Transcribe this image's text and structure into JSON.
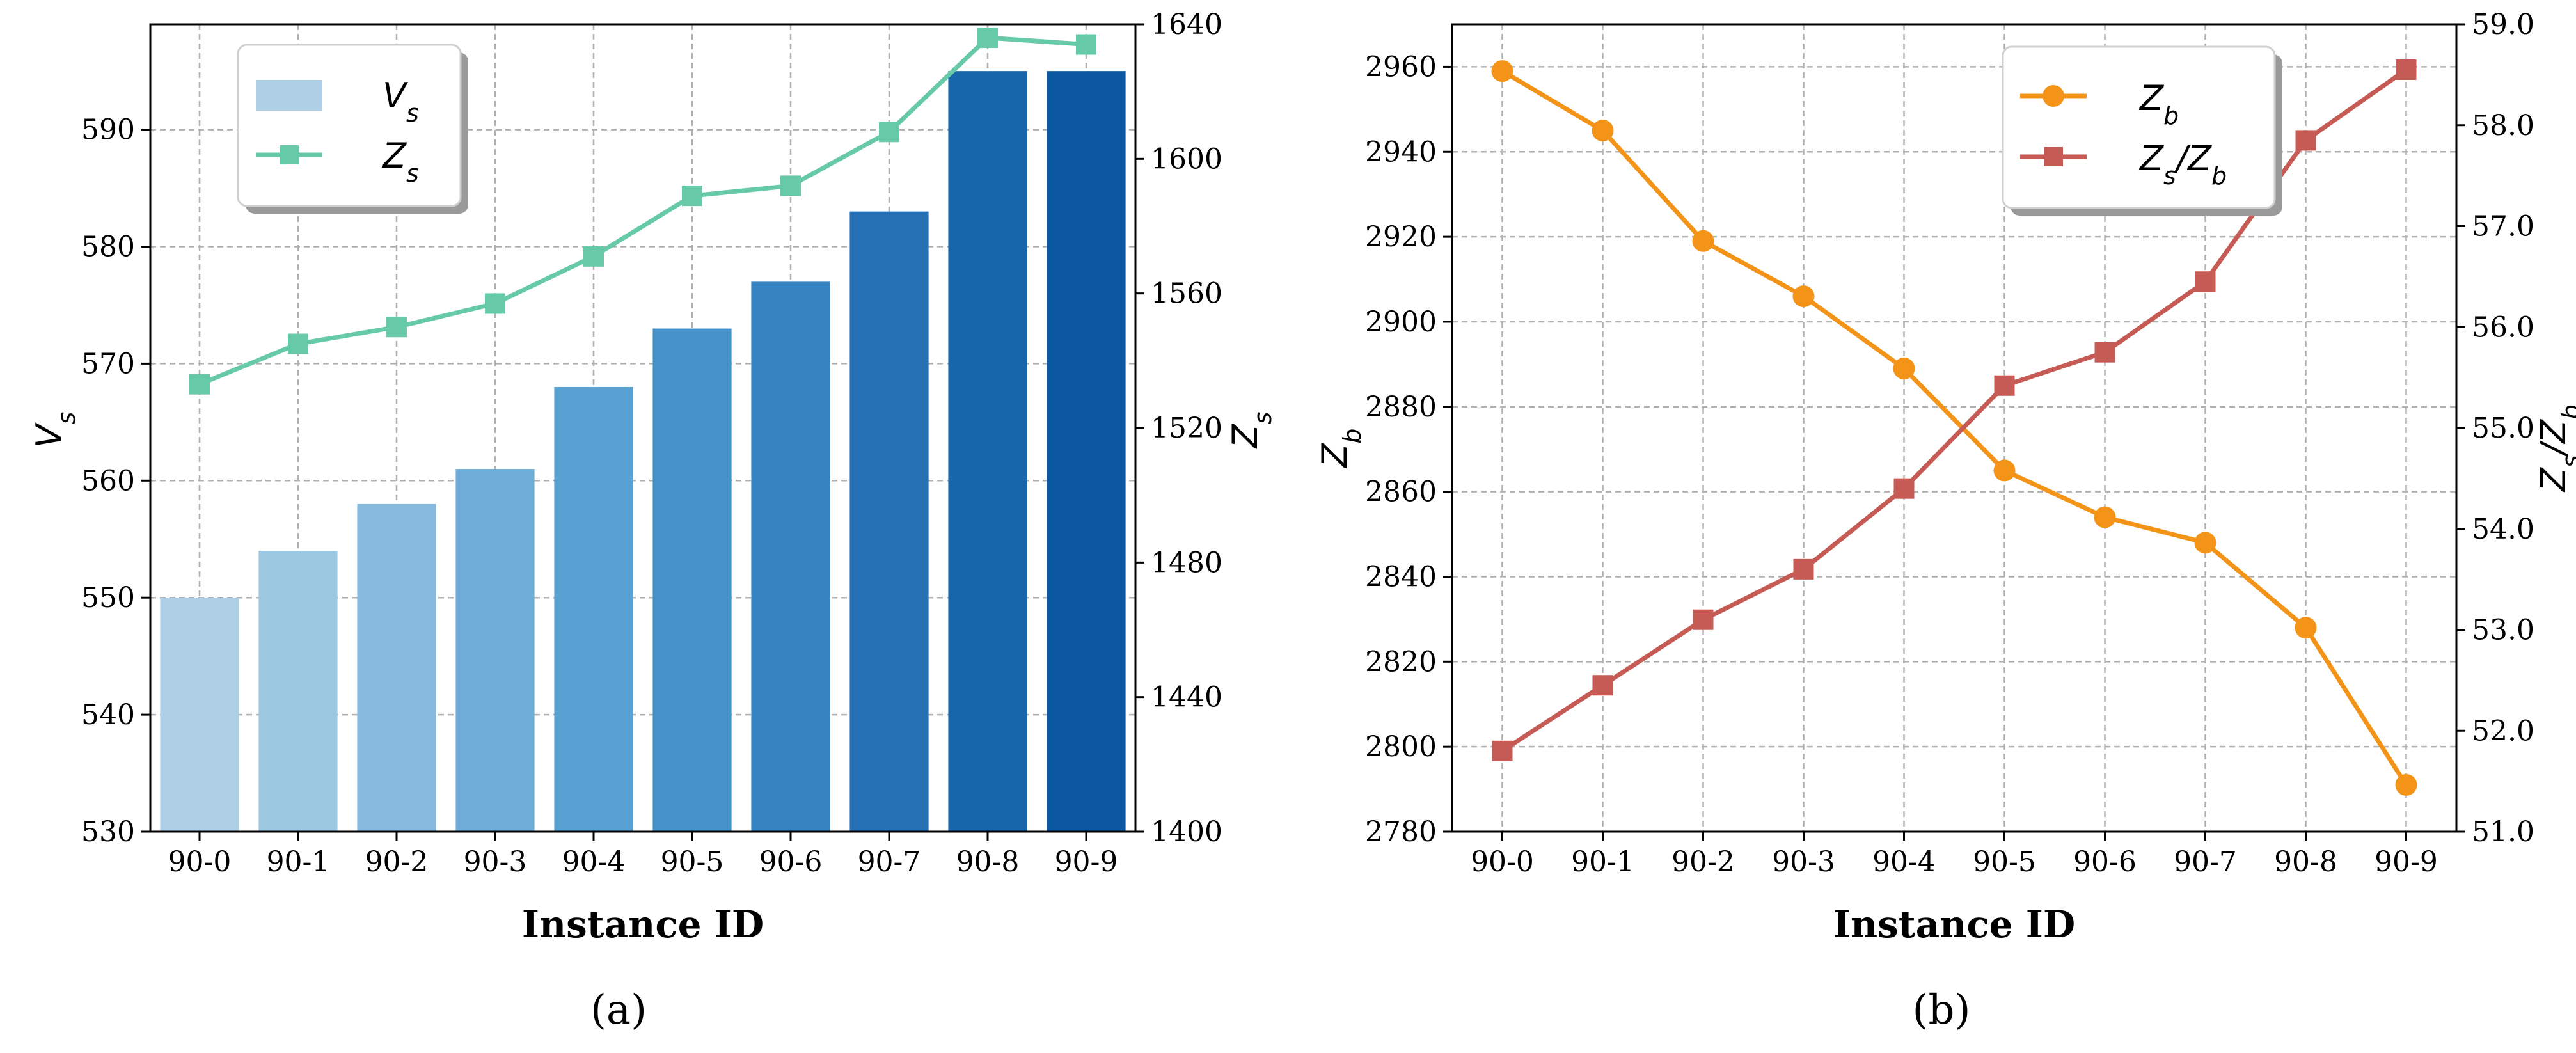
{
  "panels": {
    "a": {
      "label": "(a)"
    },
    "b": {
      "label": "(b)"
    }
  },
  "chart_data": [
    {
      "type": "bar+line",
      "panel": "(a)",
      "categories": [
        "90-0",
        "90-1",
        "90-2",
        "90-3",
        "90-4",
        "90-5",
        "90-6",
        "90-7",
        "90-8",
        "90-9"
      ],
      "xlabel": "Instance ID",
      "ylabel_left": "V_s",
      "ylabel_right": "Z_s",
      "ylim_left": [
        530,
        599
      ],
      "yticks_left": [
        530,
        540,
        550,
        560,
        570,
        580,
        590
      ],
      "ylim_right": [
        1400,
        1640
      ],
      "yticks_right": [
        1400,
        1440,
        1480,
        1520,
        1560,
        1600,
        1640
      ],
      "grid": true,
      "legend_position": "top-left",
      "series": [
        {
          "name": "V_s",
          "kind": "bar",
          "axis": "left",
          "values": [
            550,
            554,
            558,
            561,
            568,
            573,
            577,
            583,
            595,
            595
          ],
          "colors": [
            "#aecfe6",
            "#9cc7e1",
            "#86b9dd",
            "#6eadd8",
            "#57a0d2",
            "#4591c8",
            "#3683c1",
            "#2671b6",
            "#1765ab",
            "#0a56a0"
          ],
          "legend_color": "#aecfe6"
        },
        {
          "name": "Z_s",
          "kind": "line",
          "axis": "right",
          "marker": "square",
          "color": "#66c9a8",
          "values": [
            1533,
            1545,
            1550,
            1557,
            1571,
            1589,
            1592,
            1608,
            1636,
            1634
          ]
        }
      ]
    },
    {
      "type": "line",
      "panel": "(b)",
      "categories": [
        "90-0",
        "90-1",
        "90-2",
        "90-3",
        "90-4",
        "90-5",
        "90-6",
        "90-7",
        "90-8",
        "90-9"
      ],
      "xlabel": "Instance ID",
      "ylabel_left": "Z_b",
      "ylabel_right": "Z_s/Z_b",
      "ylim_left": [
        2780,
        2970
      ],
      "yticks_left": [
        2780,
        2800,
        2820,
        2840,
        2860,
        2880,
        2900,
        2920,
        2940,
        2960
      ],
      "ylim_right": [
        51.0,
        59.0
      ],
      "yticks_right": [
        "51.0",
        "52.0",
        "53.0",
        "54.0",
        "55.0",
        "56.0",
        "57.0",
        "58.0",
        "59.0"
      ],
      "grid": true,
      "legend_position": "top-right",
      "series": [
        {
          "name": "Z_b",
          "axis": "left",
          "marker": "circle",
          "color": "#f39419",
          "values": [
            2959,
            2945,
            2919,
            2906,
            2889,
            2865,
            2854,
            2848,
            2828,
            2791
          ]
        },
        {
          "name": "Z_s/Z_b",
          "axis": "right",
          "marker": "square",
          "color": "#c65a54",
          "values": [
            51.8,
            52.45,
            53.1,
            53.6,
            54.4,
            55.42,
            55.75,
            56.45,
            57.85,
            58.55
          ]
        }
      ]
    }
  ]
}
